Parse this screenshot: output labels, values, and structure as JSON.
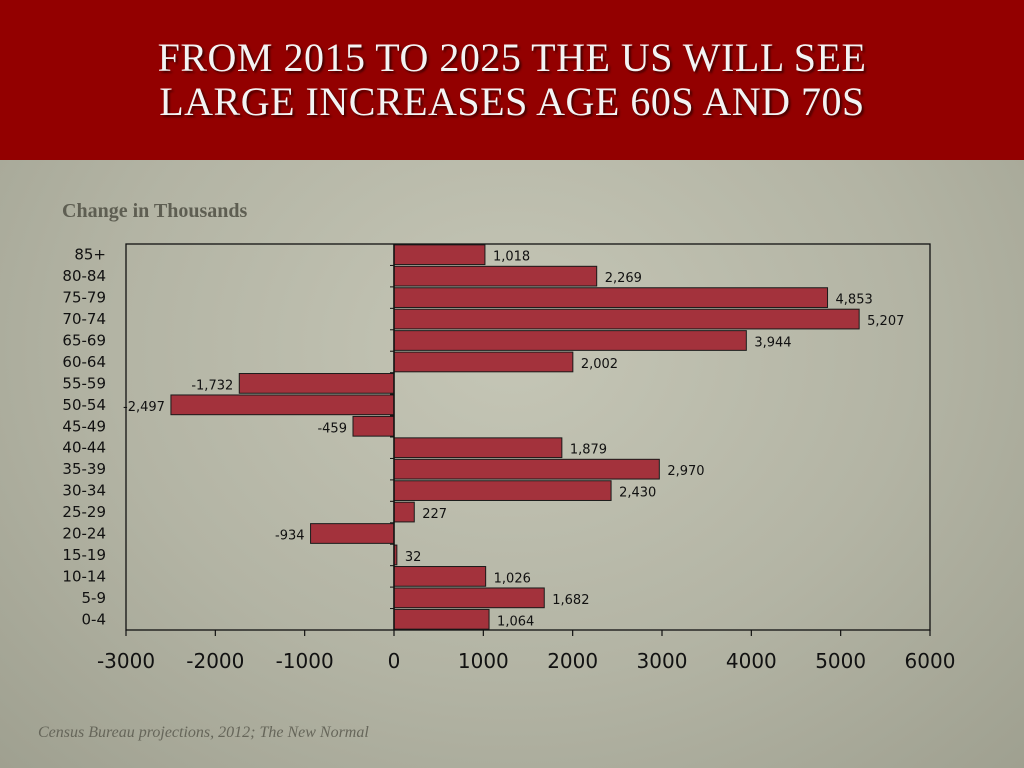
{
  "slide": {
    "title_line1": "From 2015 to 2025 the US will see",
    "title_line2": "large increases age 60s and 70s",
    "source": "Census Bureau projections, 2012; The New Normal",
    "accent_color": "#930000",
    "bar_color": "#a3323c"
  },
  "chart_data": {
    "type": "bar",
    "orientation": "horizontal",
    "title": "Change in Thousands",
    "categories": [
      "85+",
      "80-84",
      "75-79",
      "70-74",
      "65-69",
      "60-64",
      "55-59",
      "50-54",
      "45-49",
      "40-44",
      "35-39",
      "30-34",
      "25-29",
      "20-24",
      "15-19",
      "10-14",
      "5-9",
      "0-4"
    ],
    "values": [
      1018,
      2269,
      4853,
      5207,
      3944,
      2002,
      -1732,
      -2497,
      -459,
      1879,
      2970,
      2430,
      227,
      -934,
      32,
      1026,
      1682,
      1064
    ],
    "value_labels": [
      "1,018",
      "2,269",
      "4,853",
      "5,207",
      "3,944",
      "2,002",
      "-1,732",
      "-2,497",
      "-459",
      "1,879",
      "2,970",
      "2,430",
      "227",
      "-934",
      "32",
      "1,026",
      "1,682",
      "1,064"
    ],
    "xlim": [
      -3000,
      6000
    ],
    "xticks": [
      -3000,
      -2000,
      -1000,
      0,
      1000,
      2000,
      3000,
      4000,
      5000,
      6000
    ],
    "xtick_labels": [
      "-3000",
      "-2000",
      "-1000",
      "0",
      "1000",
      "2000",
      "3000",
      "4000",
      "5000",
      "6000"
    ],
    "grid": false,
    "legend": "none"
  }
}
